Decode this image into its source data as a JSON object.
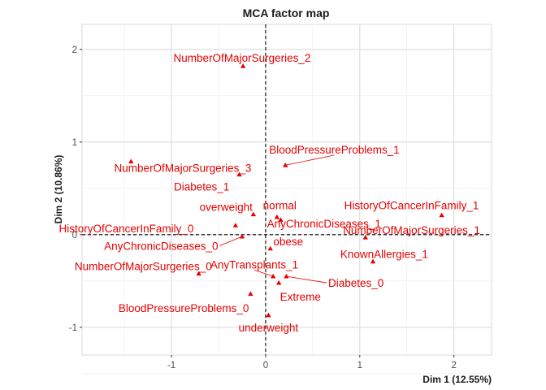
{
  "chart_data": {
    "type": "scatter",
    "title": "MCA factor map",
    "xlabel": "Dim 1 (12.55%)",
    "ylabel": "Dim 2 (10.86%)",
    "xlim": [
      -1.95,
      2.4
    ],
    "ylim": [
      -1.3,
      2.27
    ],
    "x_ticks": [
      -1,
      0,
      1,
      2
    ],
    "y_ticks": [
      -1,
      0,
      1,
      2
    ],
    "grid": true,
    "reference_lines": {
      "x": 0,
      "y": 0,
      "style": "dashed"
    },
    "point_color": "#e60000",
    "marker": "triangle",
    "points": [
      {
        "label": "NumberOfMajorSurgeries_2",
        "x": -0.24,
        "y": 1.82,
        "lx": -0.25,
        "ly": 1.91
      },
      {
        "label": "BloodPressureProblems_1",
        "x": 0.21,
        "y": 0.75,
        "lx": 0.73,
        "ly": 0.92,
        "leader": true
      },
      {
        "label": "NumberOfMajorSurgeries_3",
        "x": -1.43,
        "y": 0.79,
        "lx": -0.88,
        "ly": 0.72
      },
      {
        "label": "Diabetes_1",
        "x": -0.28,
        "y": 0.65,
        "lx": -0.68,
        "ly": 0.52
      },
      {
        "label": "overweight",
        "x": -0.13,
        "y": 0.22,
        "lx": -0.42,
        "ly": 0.3
      },
      {
        "label": "normal",
        "x": 0.12,
        "y": 0.19,
        "lx": 0.15,
        "ly": 0.32
      },
      {
        "label": "HistoryOfCancerInFamily_1",
        "x": 1.87,
        "y": 0.21,
        "lx": 1.55,
        "ly": 0.32
      },
      {
        "label": "AnyChronicDiseases_1",
        "x": 0.16,
        "y": 0.16,
        "lx": 0.62,
        "ly": 0.12
      },
      {
        "label": "HistoryOfCancerInFamily_0",
        "x": -0.32,
        "y": 0.1,
        "lx": -1.48,
        "ly": 0.07
      },
      {
        "label": "NumberOfMajorSurgeries_1",
        "x": 1.06,
        "y": -0.03,
        "lx": 1.55,
        "ly": 0.05
      },
      {
        "label": "AnyChronicDiseases_0",
        "x": -0.25,
        "y": -0.02,
        "lx": -1.11,
        "ly": -0.12,
        "leader": true
      },
      {
        "label": "obese",
        "x": 0.05,
        "y": -0.15,
        "lx": 0.24,
        "ly": -0.07
      },
      {
        "label": "KnownAllergies_1",
        "x": 1.14,
        "y": -0.29,
        "lx": 1.26,
        "ly": -0.21
      },
      {
        "label": "NumberOfMajorSurgeries_0",
        "x": -0.71,
        "y": -0.42,
        "lx": -1.3,
        "ly": -0.34
      },
      {
        "label": "AnyTransplants_1",
        "x": 0.08,
        "y": -0.45,
        "lx": -0.12,
        "ly": -0.32,
        "leader": true
      },
      {
        "label": "Diabetes_0",
        "x": 0.22,
        "y": -0.45,
        "lx": 0.96,
        "ly": -0.52,
        "leader": true
      },
      {
        "label": "Extreme",
        "x": 0.14,
        "y": -0.52,
        "lx": 0.37,
        "ly": -0.67
      },
      {
        "label": "BloodPressureProblems_0",
        "x": -0.16,
        "y": -0.64,
        "lx": -0.87,
        "ly": -0.79
      },
      {
        "label": "underweight",
        "x": 0.03,
        "y": -0.87,
        "lx": 0.03,
        "ly": -1.0
      }
    ]
  }
}
